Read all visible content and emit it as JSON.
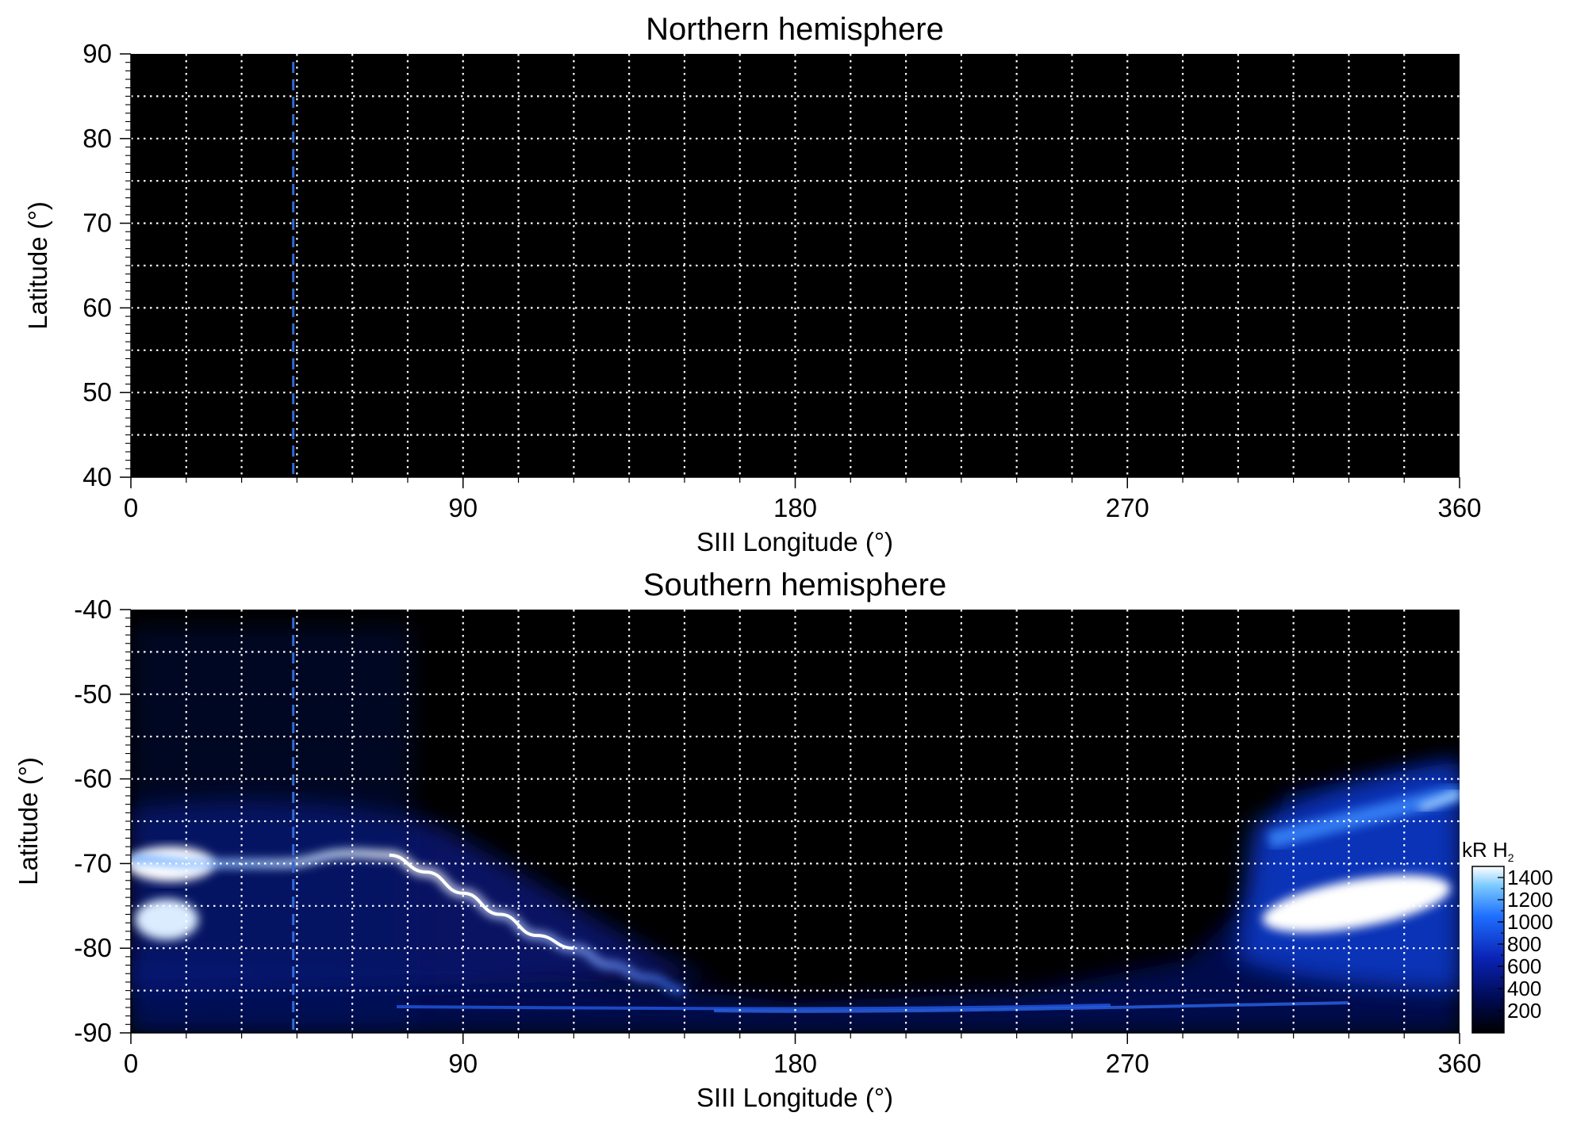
{
  "chart_data": [
    {
      "type": "heatmap",
      "title": "Northern hemisphere",
      "xlabel": "SIII Longitude (°)",
      "ylabel": "Latitude (°)",
      "xlim": [
        0,
        360
      ],
      "ylim": [
        40,
        90
      ],
      "x_ticks": [
        0,
        90,
        180,
        270,
        360
      ],
      "x_tick_labels": [
        "0",
        "90",
        "180",
        "270",
        "360"
      ],
      "y_ticks": [
        90,
        80,
        70,
        60,
        50,
        40
      ],
      "y_tick_labels": [
        "90",
        "80",
        "70",
        "60",
        "50",
        "40"
      ],
      "x_minor_gridlines_every": 15,
      "y_gridlines_every": 5,
      "grid": true,
      "grid_style": "dotted white",
      "marker_line_longitude": 44,
      "marker_line_style": "dashed blue",
      "values": "uniform black (no emission)"
    },
    {
      "type": "heatmap",
      "title": "Southern hemisphere",
      "xlabel": "SIII Longitude (°)",
      "ylabel": "Latitude (°)",
      "xlim": [
        0,
        360
      ],
      "ylim": [
        -90,
        -40
      ],
      "x_ticks": [
        0,
        90,
        180,
        270,
        360
      ],
      "x_tick_labels": [
        "0",
        "90",
        "180",
        "270",
        "360"
      ],
      "y_ticks": [
        -40,
        -50,
        -60,
        -70,
        -80,
        -90
      ],
      "y_tick_labels": [
        "-40",
        "-50",
        "-60",
        "-70",
        "-80",
        "-90"
      ],
      "x_minor_gridlines_every": 15,
      "y_gridlines_every": 5,
      "grid": true,
      "grid_style": "dotted white",
      "marker_line_longitude": 44,
      "marker_line_style": "dashed blue",
      "main_oval_path": [
        [
          0,
          -69.5
        ],
        [
          20,
          -70
        ],
        [
          40,
          -70
        ],
        [
          60,
          -68.8
        ],
        [
          70,
          -69
        ],
        [
          80,
          -71
        ],
        [
          90,
          -73.5
        ],
        [
          100,
          -76
        ],
        [
          110,
          -78.5
        ],
        [
          120,
          -80
        ],
        [
          130,
          -82
        ],
        [
          140,
          -83.5
        ],
        [
          150,
          -85
        ]
      ],
      "bright_regions": [
        {
          "lon_range": [
            0,
            20
          ],
          "lat_range": [
            -80,
            -66
          ],
          "intensity_kR": 1400
        },
        {
          "lon_range": [
            320,
            360
          ],
          "lat_range": [
            -80,
            -70
          ],
          "intensity_kR": 1400
        },
        {
          "lon_range": [
            310,
            360
          ],
          "lat_range": [
            -90,
            -62
          ],
          "intensity_kR": 600
        }
      ],
      "colorbar": {
        "label_text": "kR H",
        "label_subscript": "2",
        "ticks": [
          200,
          400,
          600,
          800,
          1000,
          1200,
          1400
        ],
        "tick_labels": [
          "200",
          "400",
          "600",
          "800",
          "1000",
          "1200",
          "1400"
        ],
        "range": [
          0,
          1500
        ],
        "colors": [
          "#000000",
          "#000a50",
          "#0a23b4",
          "#1e6eff",
          "#78c8ff",
          "#ffffff"
        ]
      }
    }
  ]
}
